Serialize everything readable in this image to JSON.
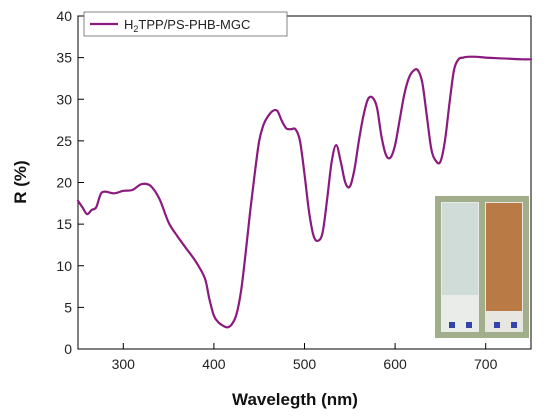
{
  "chart_data": {
    "type": "line",
    "xlabel": "Wavelegth (nm)",
    "ylabel": "R (%)",
    "xlim": [
      250,
      750
    ],
    "ylim": [
      0,
      40
    ],
    "x_ticks": [
      300,
      400,
      500,
      600,
      700
    ],
    "y_ticks": [
      0,
      5,
      10,
      15,
      20,
      25,
      30,
      35,
      40
    ],
    "grid": false,
    "legend": {
      "position": "top-left"
    },
    "series": [
      {
        "name_main": "H",
        "name_sub": "2",
        "name_rest": "TPP/PS-PHB-MGC",
        "color": "#8B1A7E",
        "x": [
          250,
          255,
          260,
          265,
          270,
          275,
          280,
          290,
          300,
          310,
          320,
          330,
          340,
          350,
          360,
          370,
          380,
          390,
          395,
          400,
          405,
          410,
          415,
          420,
          425,
          430,
          435,
          440,
          445,
          450,
          455,
          460,
          465,
          470,
          475,
          480,
          485,
          490,
          495,
          500,
          505,
          510,
          515,
          520,
          525,
          530,
          535,
          540,
          545,
          550,
          555,
          560,
          565,
          570,
          575,
          580,
          585,
          590,
          595,
          600,
          605,
          610,
          615,
          620,
          625,
          630,
          635,
          640,
          645,
          650,
          655,
          660,
          665,
          670,
          675,
          680,
          690,
          700,
          720,
          740,
          750
        ],
        "y": [
          17.8,
          17.0,
          16.2,
          16.7,
          17.0,
          18.6,
          18.9,
          18.7,
          19.0,
          19.1,
          19.8,
          19.6,
          18.0,
          15.2,
          13.5,
          12.0,
          10.5,
          8.5,
          6.0,
          4.0,
          3.2,
          2.8,
          2.6,
          3.0,
          4.2,
          7.0,
          11.5,
          16.5,
          21.0,
          25.0,
          27.0,
          28.0,
          28.6,
          28.6,
          27.4,
          26.5,
          26.4,
          26.4,
          25.0,
          21.0,
          16.5,
          13.6,
          13.0,
          14.0,
          18.0,
          22.5,
          24.5,
          22.5,
          20.0,
          19.5,
          21.5,
          25.0,
          28.0,
          30.0,
          30.2,
          29.0,
          25.5,
          23.3,
          23.0,
          24.5,
          27.5,
          30.5,
          32.5,
          33.4,
          33.5,
          32.0,
          28.0,
          24.0,
          22.6,
          22.5,
          25.0,
          29.5,
          33.5,
          34.8,
          35.0,
          35.1,
          35.1,
          35.0,
          34.9,
          34.8,
          34.8
        ]
      }
    ]
  },
  "inset": {
    "description_colors": [
      "#cfdcd7",
      "#b97a45"
    ]
  }
}
